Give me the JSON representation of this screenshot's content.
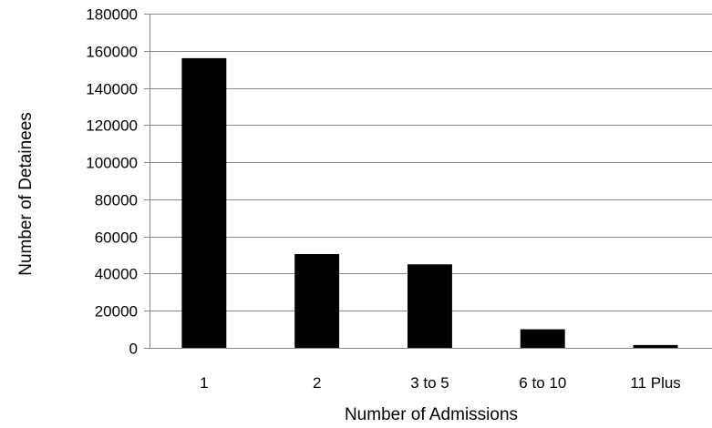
{
  "chart_data": {
    "type": "bar",
    "title": "",
    "xlabel": "Number of Admissions",
    "ylabel": "Number of Detainees",
    "categories": [
      "1",
      "2",
      "3 to 5",
      "6 to 10",
      "11 Plus"
    ],
    "values": [
      156000,
      50500,
      45000,
      10000,
      1500
    ],
    "ylim": [
      0,
      180000
    ],
    "yticks": [
      0,
      20000,
      40000,
      60000,
      80000,
      100000,
      120000,
      140000,
      160000,
      180000
    ],
    "grid": true,
    "legend": "none",
    "colors": {
      "bar": "#000000",
      "grid": "#888888",
      "axis": "#888888"
    }
  }
}
